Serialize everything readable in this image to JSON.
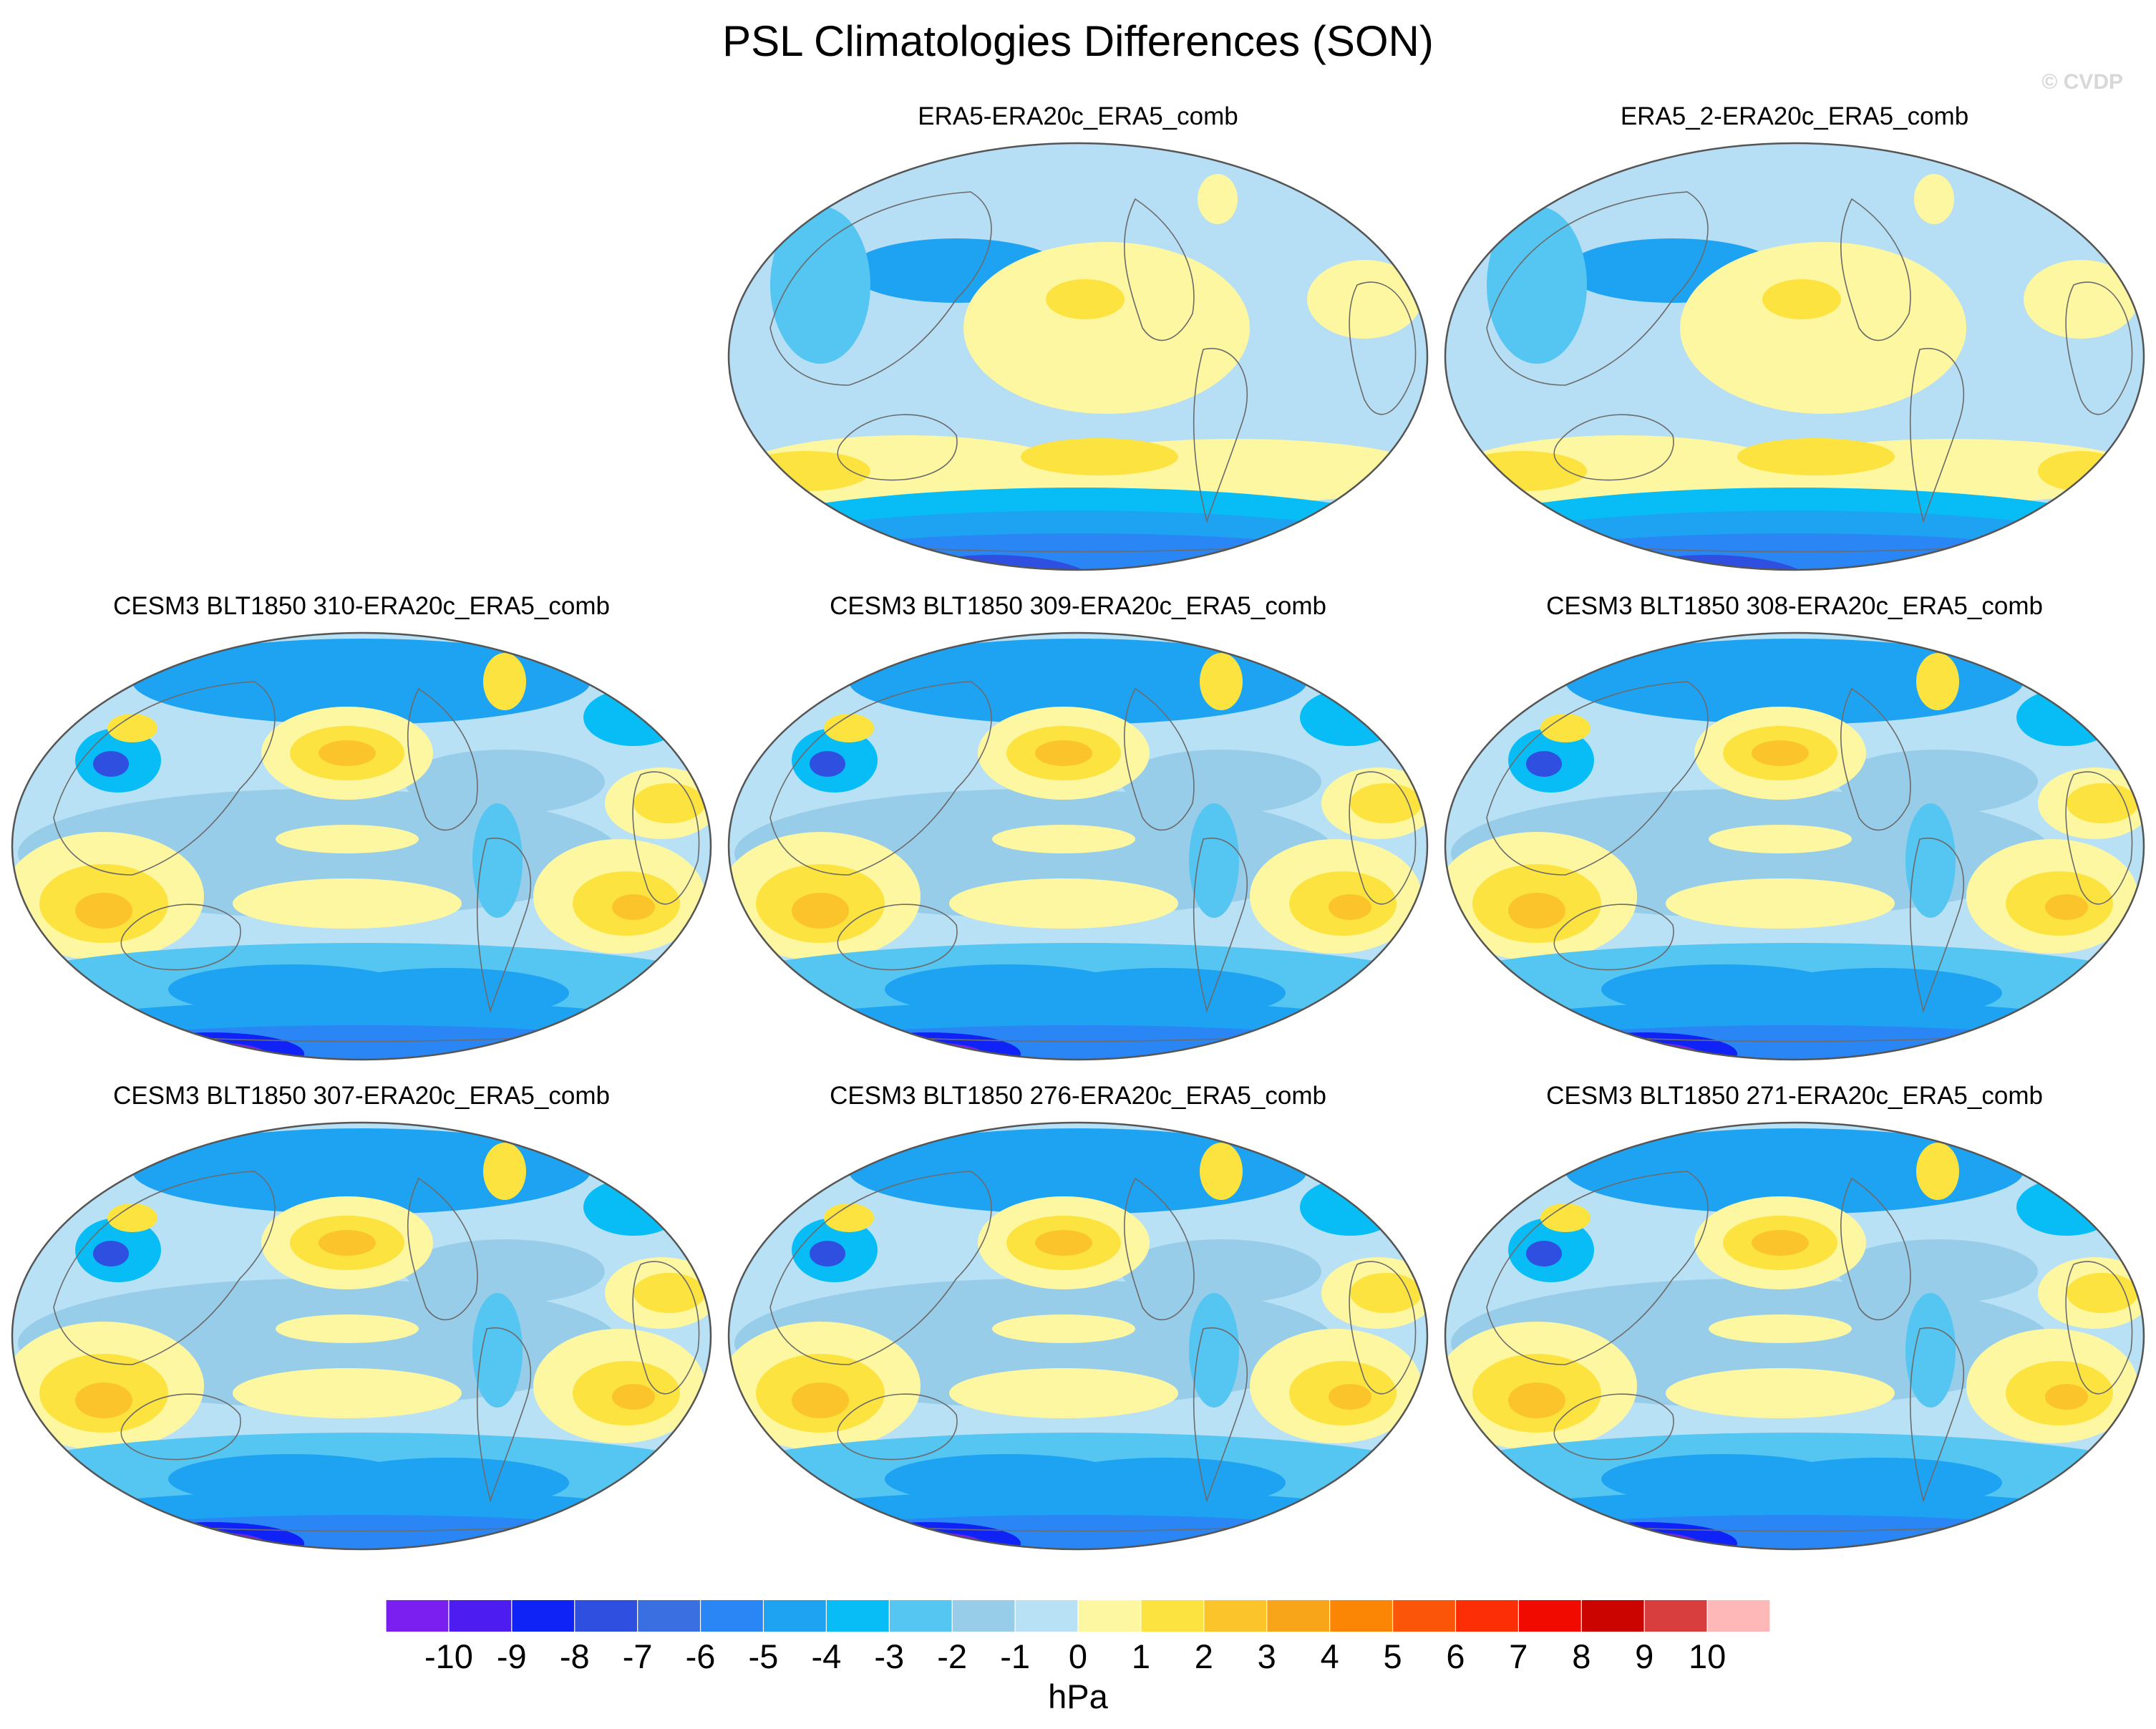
{
  "chart_data": {
    "type": "heatmap",
    "title": "PSL Climatologies Differences (SON)",
    "watermark": "© CVDP",
    "units": "hPa",
    "colorbar": {
      "levels": [
        "-10",
        "-9",
        "-8",
        "-7",
        "-6",
        "-5",
        "-4",
        "-3",
        "-2",
        "-1",
        "0",
        "1",
        "2",
        "3",
        "4",
        "5",
        "6",
        "7",
        "8",
        "9",
        "10"
      ],
      "colors": [
        "#7a1ff0",
        "#4d1cf0",
        "#0f23f7",
        "#2e4fe0",
        "#3a6fe2",
        "#2a86f4",
        "#1ea3f2",
        "#08bdf5",
        "#55c5f1",
        "#98cdea",
        "#b9e1f5",
        "#fef7a1",
        "#fce340",
        "#fac42a",
        "#f9a51a",
        "#fb8504",
        "#fb5509",
        "#fb2e06",
        "#f00a00",
        "#cc0400",
        "#d73e3d",
        "#ffb8b8"
      ]
    },
    "panels": [
      {
        "title": "ERA5-ERA20c_ERA5_comb",
        "style": "obs"
      },
      {
        "title": "ERA5_2-ERA20c_ERA5_comb",
        "style": "obs"
      },
      {
        "title": "CESM3 BLT1850 310-ERA20c_ERA5_comb",
        "style": "model"
      },
      {
        "title": "CESM3 BLT1850 309-ERA20c_ERA5_comb",
        "style": "model"
      },
      {
        "title": "CESM3 BLT1850 308-ERA20c_ERA5_comb",
        "style": "model"
      },
      {
        "title": "CESM3 BLT1850 307-ERA20c_ERA5_comb",
        "style": "model"
      },
      {
        "title": "CESM3 BLT1850 276-ERA20c_ERA5_comb",
        "style": "model"
      },
      {
        "title": "CESM3 BLT1850 271-ERA20c_ERA5_comb",
        "style": "model"
      }
    ]
  }
}
